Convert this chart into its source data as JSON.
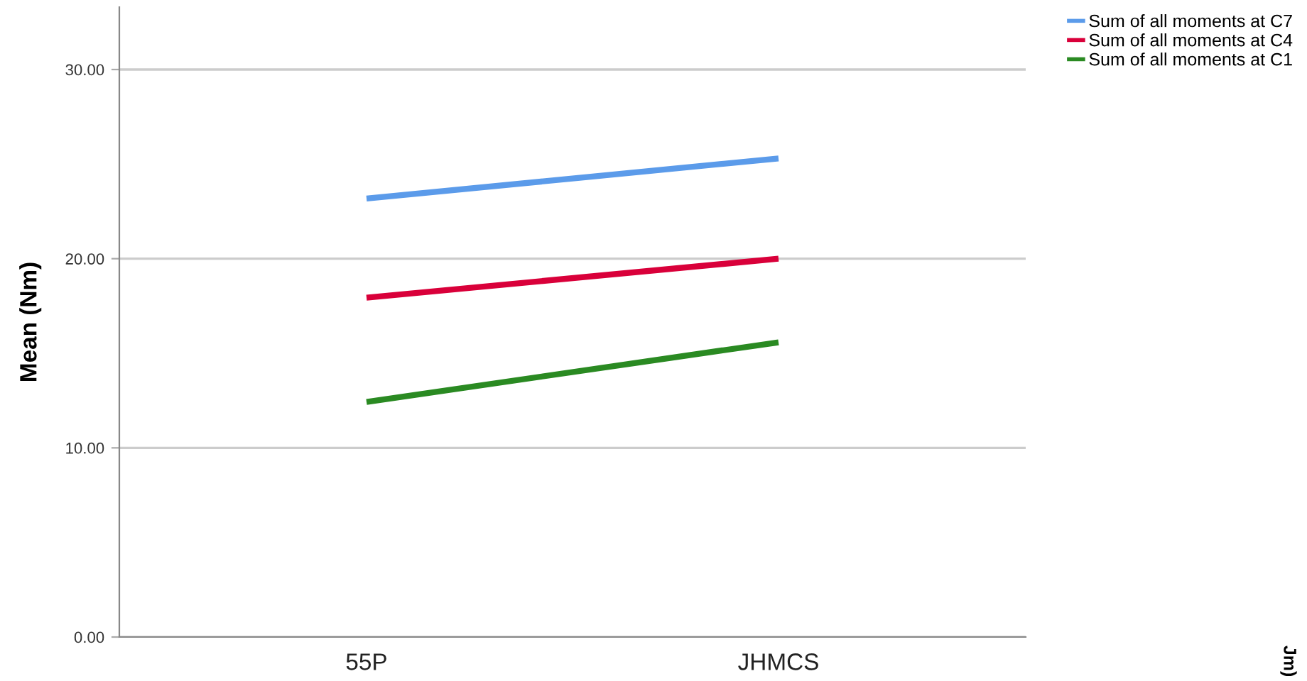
{
  "chart_data": {
    "type": "line",
    "ylabel": "Mean (Nm)",
    "categories": [
      "55P",
      "JHMCS"
    ],
    "series": [
      {
        "name": "Sum of all moments at C7",
        "color": "#5b9bea",
        "values": [
          23.18,
          25.3
        ]
      },
      {
        "name": "Sum of all moments at C4",
        "color": "#d9003a",
        "values": [
          17.94,
          20.0
        ]
      },
      {
        "name": "Sum of all moments at C1",
        "color": "#2a8a22",
        "values": [
          12.43,
          15.58
        ]
      }
    ],
    "ylim": [
      0,
      33.3
    ],
    "yticks": [
      {
        "value": 0,
        "label": "0.00"
      },
      {
        "value": 10,
        "label": "10.00"
      },
      {
        "value": 20,
        "label": "20.00"
      },
      {
        "value": 30,
        "label": "30.00"
      }
    ],
    "grid": "y",
    "legend": "top right",
    "marker": "none",
    "line_style": "solid",
    "annotations": [
      "Jm)"
    ]
  }
}
